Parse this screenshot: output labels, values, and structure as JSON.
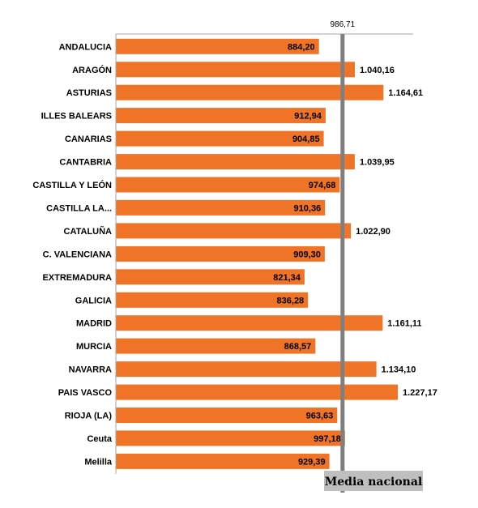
{
  "chart_data": {
    "type": "bar",
    "orientation": "horizontal",
    "categories": [
      "ANDALUCIA",
      "ARAGÓN",
      "ASTURIAS",
      "ILLES BALEARS",
      "CANARIAS",
      "CANTABRIA",
      "CASTILLA Y LEÓN",
      "CASTILLA LA...",
      "CATALUÑA",
      "C. VALENCIANA",
      "EXTREMADURA",
      "GALICIA",
      "MADRID",
      "MURCIA",
      "NAVARRA",
      "PAIS VASCO",
      "RIOJA (LA)",
      "Ceuta",
      "Melilla"
    ],
    "values": [
      884.2,
      1040.16,
      1164.61,
      912.94,
      904.85,
      1039.95,
      974.68,
      910.36,
      1022.9,
      909.3,
      821.34,
      836.28,
      1161.11,
      868.57,
      1134.1,
      1227.17,
      963.63,
      997.18,
      929.39
    ],
    "value_labels": [
      "884,20",
      "1.040,16",
      "1.164,61",
      "912,94",
      "904,85",
      "1.039,95",
      "974,68",
      "910,36",
      "1.022,90",
      "909,30",
      "821,34",
      "836,28",
      "1.161,11",
      "868,57",
      "1.134,10",
      "1.227,17",
      "963,63",
      "997,18",
      "929,39"
    ],
    "reference_line": {
      "value": 986.71,
      "label": "986,71"
    },
    "legend": {
      "label": "Media nacional",
      "position": "bottom-right"
    },
    "xlim": [
      0,
      1300
    ],
    "grid": false,
    "colors": {
      "bar": "#F07427",
      "reference": "#7F7F7F",
      "legend_bg": "#BFBFBF",
      "axis": "#A6A6A6"
    }
  }
}
